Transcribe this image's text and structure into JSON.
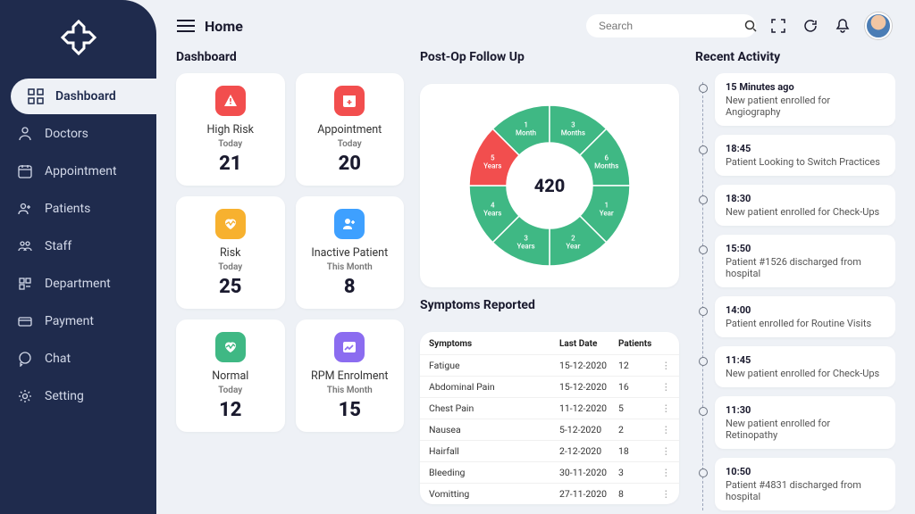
{
  "header": {
    "home_label": "Home",
    "search_placeholder": "Search"
  },
  "sidebar": {
    "items": [
      {
        "label": "Dashboard"
      },
      {
        "label": "Doctors"
      },
      {
        "label": "Appointment"
      },
      {
        "label": "Patients"
      },
      {
        "label": "Staff"
      },
      {
        "label": "Department"
      },
      {
        "label": "Payment"
      },
      {
        "label": "Chat"
      },
      {
        "label": "Setting"
      }
    ]
  },
  "dashboard": {
    "title": "Dashboard",
    "cards": [
      {
        "title": "High Risk",
        "sub": "Today",
        "value": "21",
        "icon_bg": "#f24e4e"
      },
      {
        "title": "Appointment",
        "sub": "Today",
        "value": "20",
        "icon_bg": "#f24e4e"
      },
      {
        "title": "Risk",
        "sub": "Today",
        "value": "25",
        "icon_bg": "#f7b12f"
      },
      {
        "title": "Inactive Patient",
        "sub": "This Month",
        "value": "8",
        "icon_bg": "#3ea0ff"
      },
      {
        "title": "Normal",
        "sub": "Today",
        "value": "12",
        "icon_bg": "#3fb884"
      },
      {
        "title": "RPM Enrolment",
        "sub": "This Month",
        "value": "15",
        "icon_bg": "#8b6cf0"
      }
    ]
  },
  "postop": {
    "title": "Post-Op Follow Up",
    "center_value": "420",
    "type": "donut",
    "colors": {
      "main": "#3fb884",
      "accent": "#f24e4e",
      "stroke": "#ffffff",
      "inner_bg": "#ffffff"
    },
    "segments": [
      {
        "label": "1 Month",
        "color": "#3fb884"
      },
      {
        "label": "3 Months",
        "color": "#3fb884"
      },
      {
        "label": "6 Months",
        "color": "#3fb884"
      },
      {
        "label": "1 Year",
        "color": "#3fb884"
      },
      {
        "label": "2 Year",
        "color": "#3fb884"
      },
      {
        "label": "3 Years",
        "color": "#3fb884"
      },
      {
        "label": "4 Years",
        "color": "#3fb884"
      },
      {
        "label": "5 Years",
        "color": "#f24e4e"
      }
    ]
  },
  "symptoms": {
    "title": "Symptoms Reported",
    "columns": [
      "Symptoms",
      "Last Date",
      "Patients"
    ],
    "rows": [
      {
        "name": "Fatigue",
        "date": "15-12-2020",
        "count": "12"
      },
      {
        "name": "Abdominal Pain",
        "date": "15-12-2020",
        "count": "16"
      },
      {
        "name": "Chest Pain",
        "date": "11-12-2020",
        "count": "5"
      },
      {
        "name": "Nausea",
        "date": "5-12-2020",
        "count": "2"
      },
      {
        "name": "Hairfall",
        "date": "2-12-2020",
        "count": "18"
      },
      {
        "name": "Bleeding",
        "date": "30-11-2020",
        "count": "3"
      },
      {
        "name": "Vomitting",
        "date": "27-11-2020",
        "count": "8"
      }
    ]
  },
  "activity": {
    "title": "Recent Activity",
    "items": [
      {
        "time": "15 Minutes ago",
        "text": "New patient enrolled for Angiography"
      },
      {
        "time": "18:45",
        "text": "Patient Looking to Switch Practices"
      },
      {
        "time": "18:30",
        "text": "New patient enrolled for Check-Ups"
      },
      {
        "time": "15:50",
        "text": "Patient #1526 discharged from hospital"
      },
      {
        "time": "14:00",
        "text": "Patient enrolled for Routine Visits"
      },
      {
        "time": "11:45",
        "text": "New patient enrolled for Check-Ups"
      },
      {
        "time": "11:30",
        "text": "New patient enrolled for Retinopathy"
      },
      {
        "time": "10:50",
        "text": "Patient #4831 discharged from hospital"
      }
    ]
  }
}
